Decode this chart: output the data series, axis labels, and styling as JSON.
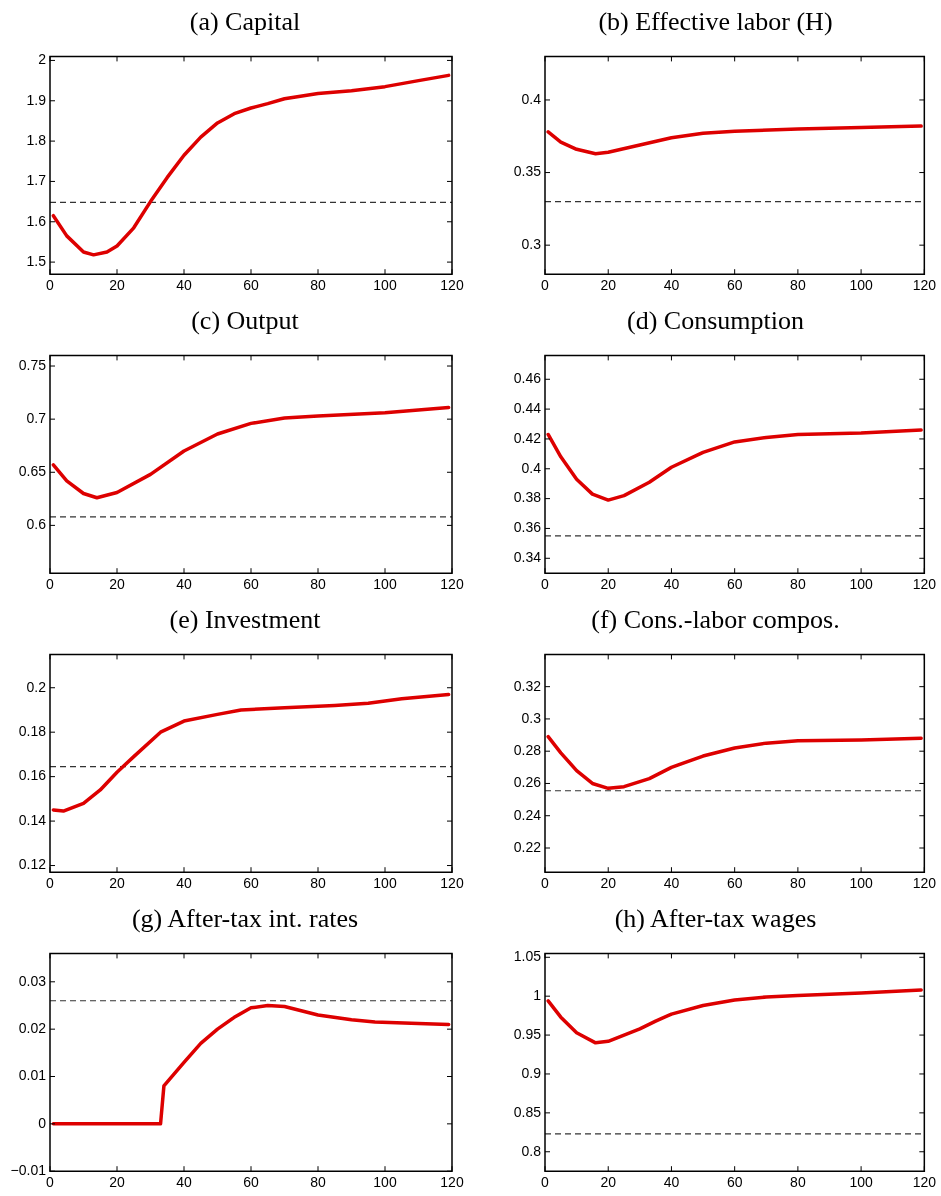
{
  "chart_data": [
    {
      "type": "line",
      "title": "(a) Capital",
      "xlim": [
        0,
        120
      ],
      "xticks": [
        0,
        20,
        40,
        60,
        80,
        100,
        120
      ],
      "ylim": [
        1.47,
        2.01
      ],
      "yticks": [
        1.5,
        1.6,
        1.7,
        1.8,
        1.9,
        2
      ],
      "grid": false,
      "ref_lines": [
        {
          "axis": "y",
          "value": 1.648,
          "color": "#333333",
          "line_style": "dashed"
        }
      ],
      "series": [
        {
          "color": "#dd0000",
          "x": [
            1,
            5,
            10,
            13,
            17,
            20,
            25,
            30,
            35,
            40,
            45,
            50,
            55,
            60,
            65,
            70,
            80,
            90,
            100,
            110,
            119
          ],
          "values": [
            1.615,
            1.565,
            1.525,
            1.518,
            1.525,
            1.54,
            1.585,
            1.65,
            1.71,
            1.765,
            1.81,
            1.845,
            1.868,
            1.882,
            1.893,
            1.905,
            1.918,
            1.925,
            1.935,
            1.95,
            1.963
          ]
        }
      ]
    },
    {
      "type": "line",
      "title": "(b) Effective labor (H)",
      "xlim": [
        0,
        120
      ],
      "xticks": [
        0,
        20,
        40,
        60,
        80,
        100,
        120
      ],
      "ylim": [
        0.28,
        0.43
      ],
      "yticks": [
        0.3,
        0.35,
        0.4
      ],
      "grid": false,
      "ref_lines": [
        {
          "axis": "y",
          "value": 0.33,
          "color": "#333333",
          "line_style": "dashed"
        }
      ],
      "series": [
        {
          "color": "#dd0000",
          "x": [
            1,
            5,
            10,
            16,
            20,
            30,
            40,
            50,
            60,
            80,
            100,
            119
          ],
          "values": [
            0.378,
            0.371,
            0.366,
            0.363,
            0.364,
            0.369,
            0.374,
            0.377,
            0.3785,
            0.38,
            0.381,
            0.382
          ]
        }
      ]
    },
    {
      "type": "line",
      "title": "(c) Output",
      "xlim": [
        0,
        120
      ],
      "xticks": [
        0,
        20,
        40,
        60,
        80,
        100,
        120
      ],
      "ylim": [
        0.555,
        0.76
      ],
      "yticks": [
        0.6,
        0.65,
        0.7,
        0.75
      ],
      "grid": false,
      "ref_lines": [
        {
          "axis": "y",
          "value": 0.608,
          "color": "#333333",
          "line_style": "dashed"
        }
      ],
      "series": [
        {
          "color": "#dd0000",
          "x": [
            1,
            5,
            10,
            14,
            20,
            30,
            40,
            50,
            60,
            70,
            80,
            100,
            119
          ],
          "values": [
            0.657,
            0.642,
            0.63,
            0.626,
            0.631,
            0.648,
            0.67,
            0.686,
            0.696,
            0.701,
            0.703,
            0.706,
            0.711
          ]
        }
      ]
    },
    {
      "type": "line",
      "title": "(d) Consumption",
      "xlim": [
        0,
        120
      ],
      "xticks": [
        0,
        20,
        40,
        60,
        80,
        100,
        120
      ],
      "ylim": [
        0.33,
        0.476
      ],
      "yticks": [
        0.34,
        0.36,
        0.38,
        0.4,
        0.42,
        0.44,
        0.46
      ],
      "grid": false,
      "ref_lines": [
        {
          "axis": "y",
          "value": 0.355,
          "color": "#333333",
          "line_style": "dashed"
        }
      ],
      "series": [
        {
          "color": "#dd0000",
          "x": [
            1,
            5,
            10,
            15,
            20,
            25,
            33,
            40,
            50,
            60,
            70,
            80,
            100,
            119
          ],
          "values": [
            0.423,
            0.408,
            0.393,
            0.383,
            0.379,
            0.382,
            0.391,
            0.401,
            0.411,
            0.418,
            0.421,
            0.423,
            0.424,
            0.426
          ]
        }
      ]
    },
    {
      "type": "line",
      "title": "(e) Investment",
      "xlim": [
        0,
        120
      ],
      "xticks": [
        0,
        20,
        40,
        60,
        80,
        100,
        120
      ],
      "ylim": [
        0.117,
        0.215
      ],
      "yticks": [
        0.12,
        0.14,
        0.16,
        0.18,
        0.2
      ],
      "grid": false,
      "ref_lines": [
        {
          "axis": "y",
          "value": 0.1645,
          "color": "#333333",
          "line_style": "dashed"
        }
      ],
      "series": [
        {
          "color": "#dd0000",
          "x": [
            1,
            4,
            10,
            15,
            20,
            25,
            33,
            40,
            50,
            57,
            70,
            85,
            95,
            105,
            119
          ],
          "values": [
            0.145,
            0.1445,
            0.148,
            0.154,
            0.162,
            0.169,
            0.18,
            0.185,
            0.188,
            0.19,
            0.191,
            0.192,
            0.193,
            0.195,
            0.197
          ]
        }
      ]
    },
    {
      "type": "line",
      "title": "(f) Cons.-labor compos.",
      "xlim": [
        0,
        120
      ],
      "xticks": [
        0,
        20,
        40,
        60,
        80,
        100,
        120
      ],
      "ylim": [
        0.205,
        0.34
      ],
      "yticks": [
        0.22,
        0.24,
        0.26,
        0.28,
        0.3,
        0.32
      ],
      "grid": false,
      "ref_lines": [
        {
          "axis": "y",
          "value": 0.2555,
          "color": "#333333",
          "line_style": "dashed"
        }
      ],
      "series": [
        {
          "color": "#dd0000",
          "x": [
            1,
            5,
            10,
            15,
            20,
            25,
            33,
            40,
            50,
            60,
            70,
            80,
            100,
            119
          ],
          "values": [
            0.289,
            0.279,
            0.268,
            0.26,
            0.257,
            0.258,
            0.263,
            0.27,
            0.277,
            0.282,
            0.285,
            0.2865,
            0.287,
            0.288
          ]
        }
      ]
    },
    {
      "type": "line",
      "title": "(g) After-tax int. rates",
      "xlim": [
        0,
        120
      ],
      "xticks": [
        0,
        20,
        40,
        60,
        80,
        100,
        120
      ],
      "ylim": [
        -0.01,
        0.036
      ],
      "yticks": [
        {
          "value": -0.01,
          "label": "−0.01"
        },
        0,
        0.01,
        0.02,
        0.03
      ],
      "grid": false,
      "ref_lines": [
        {
          "axis": "y",
          "value": 0.026,
          "color": "#333333",
          "line_style": "dashed"
        }
      ],
      "series": [
        {
          "color": "#dd0000",
          "x": [
            1,
            33,
            34,
            40,
            45,
            50,
            55,
            60,
            65,
            70,
            80,
            90,
            97,
            110,
            119
          ],
          "values": [
            0,
            0,
            0.008,
            0.013,
            0.017,
            0.02,
            0.0225,
            0.0245,
            0.025,
            0.0248,
            0.023,
            0.022,
            0.0215,
            0.0212,
            0.021
          ]
        }
      ]
    },
    {
      "type": "line",
      "title": "(h) After-tax wages",
      "xlim": [
        0,
        120
      ],
      "xticks": [
        0,
        20,
        40,
        60,
        80,
        100,
        120
      ],
      "ylim": [
        0.775,
        1.055
      ],
      "yticks": [
        0.8,
        0.85,
        0.9,
        0.95,
        1,
        1.05
      ],
      "grid": false,
      "ref_lines": [
        {
          "axis": "y",
          "value": 0.823,
          "color": "#333333",
          "line_style": "dashed"
        }
      ],
      "series": [
        {
          "color": "#dd0000",
          "x": [
            1,
            5,
            10,
            16,
            20,
            30,
            35,
            40,
            50,
            60,
            70,
            80,
            100,
            119
          ],
          "values": [
            0.994,
            0.973,
            0.953,
            0.94,
            0.942,
            0.958,
            0.968,
            0.977,
            0.988,
            0.995,
            0.999,
            1.001,
            1.004,
            1.008
          ]
        }
      ]
    }
  ]
}
